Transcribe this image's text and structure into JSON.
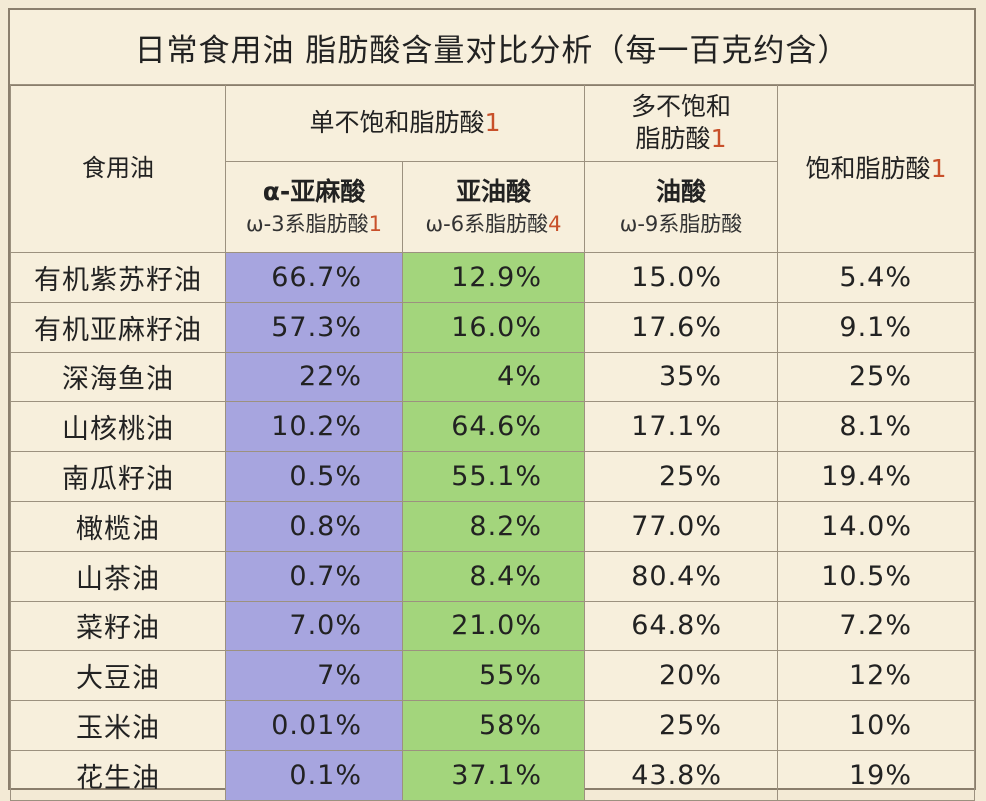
{
  "title": "日常食用油 脂肪酸含量对比分析（每一百克约含）",
  "header": {
    "oil_col": "食用油",
    "mono_group": "单不饱和脂肪酸",
    "mono_group_mark": "1",
    "poly_group_line1": "多不饱和",
    "poly_group_line2": "脂肪酸",
    "poly_group_mark": "1",
    "saturated": "饱和脂肪酸",
    "saturated_mark": "1",
    "alpha_name": "α-亚麻酸",
    "alpha_omega": "ω-3系脂肪酸",
    "alpha_mark": "1",
    "linoleic_name": "亚油酸",
    "linoleic_omega": "ω-6系脂肪酸",
    "linoleic_mark": "4",
    "oleic_name": "油酸",
    "oleic_omega": "ω-9系脂肪酸"
  },
  "rows": [
    {
      "name": "有机紫苏籽油",
      "alpha": "66.7%",
      "linoleic": "12.9%",
      "oleic": "15.0%",
      "saturated": "5.4%"
    },
    {
      "name": "有机亚麻籽油",
      "alpha": "57.3%",
      "linoleic": "16.0%",
      "oleic": "17.6%",
      "saturated": "9.1%"
    },
    {
      "name": "深海鱼油",
      "alpha": "22%",
      "linoleic": "4%",
      "oleic": "35%",
      "saturated": "25%"
    },
    {
      "name": "山核桃油",
      "alpha": "10.2%",
      "linoleic": "64.6%",
      "oleic": "17.1%",
      "saturated": "8.1%"
    },
    {
      "name": "南瓜籽油",
      "alpha": "0.5%",
      "linoleic": "55.1%",
      "oleic": "25%",
      "saturated": "19.4%"
    },
    {
      "name": "橄榄油",
      "alpha": "0.8%",
      "linoleic": "8.2%",
      "oleic": "77.0%",
      "saturated": "14.0%"
    },
    {
      "name": "山茶油",
      "alpha": "0.7%",
      "linoleic": "8.4%",
      "oleic": "80.4%",
      "saturated": "10.5%"
    },
    {
      "name": "菜籽油",
      "alpha": "7.0%",
      "linoleic": "21.0%",
      "oleic": "64.8%",
      "saturated": "7.2%"
    },
    {
      "name": "大豆油",
      "alpha": "7%",
      "linoleic": "55%",
      "oleic": "20%",
      "saturated": "12%"
    },
    {
      "name": "玉米油",
      "alpha": "0.01%",
      "linoleic": "58%",
      "oleic": "25%",
      "saturated": "10%"
    },
    {
      "name": "花生油",
      "alpha": "0.1%",
      "linoleic": "37.1%",
      "oleic": "43.8%",
      "saturated": "19%"
    }
  ],
  "colors": {
    "alpha_column": "#a7a5df",
    "linoleic_column": "#a3d57c",
    "note_mark": "#c8502a",
    "background": "#f7efdc"
  }
}
